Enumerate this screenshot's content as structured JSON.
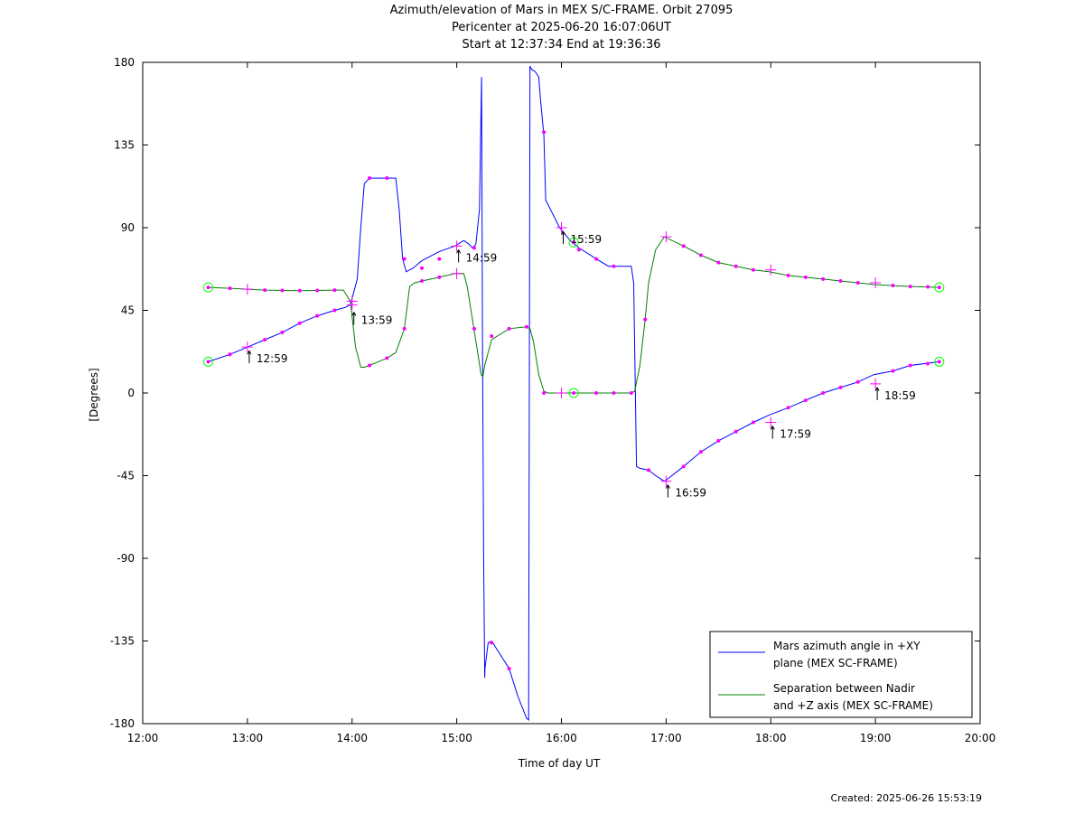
{
  "chart_data": {
    "type": "line",
    "title": [
      "Azimuth/elevation of Mars in MEX S/C-FRAME.  Orbit 27095",
      "Pericenter at 2025-06-20 16:07:06UT",
      "Start at 12:37:34 End at 19:36:36"
    ],
    "xlabel": "Time of day UT",
    "ylabel": "[Degrees]",
    "xlim": [
      12,
      20
    ],
    "ylim": [
      -180,
      180
    ],
    "x_ticks": [
      {
        "value": 12,
        "label": "12:00"
      },
      {
        "value": 13,
        "label": "13:00"
      },
      {
        "value": 14,
        "label": "14:00"
      },
      {
        "value": 15,
        "label": "15:00"
      },
      {
        "value": 16,
        "label": "16:00"
      },
      {
        "value": 17,
        "label": "17:00"
      },
      {
        "value": 18,
        "label": "18:00"
      },
      {
        "value": 19,
        "label": "19:00"
      },
      {
        "value": 20,
        "label": "20:00"
      }
    ],
    "y_ticks": [
      {
        "value": 180,
        "label": "180"
      },
      {
        "value": 135,
        "label": "135"
      },
      {
        "value": 90,
        "label": "90"
      },
      {
        "value": 45,
        "label": "45"
      },
      {
        "value": 0,
        "label": "0"
      },
      {
        "value": -45,
        "label": "-45"
      },
      {
        "value": -90,
        "label": "-90"
      },
      {
        "value": -135,
        "label": "-135"
      },
      {
        "value": -180,
        "label": "-180"
      }
    ],
    "grid": false,
    "legend_position": "bottom-right",
    "series": [
      {
        "name": "Mars azimuth angle in +XY plane (MEX SC-FRAME)",
        "legend_lines": [
          "Mars azimuth angle in +XY",
          "plane (MEX SC-FRAME)"
        ],
        "color": "#0000ff",
        "x": [
          12.626,
          12.833,
          13.0,
          13.167,
          13.333,
          13.5,
          13.667,
          13.833,
          13.933,
          13.983,
          14.05,
          14.083,
          14.117,
          14.167,
          14.25,
          14.333,
          14.417,
          14.45,
          14.483,
          14.517,
          14.583,
          14.667,
          14.833,
          14.983,
          15.067,
          15.117,
          15.15,
          15.183,
          15.217,
          15.237,
          15.247,
          15.257,
          15.267,
          15.27,
          15.3,
          15.333,
          15.5,
          15.583,
          15.667,
          15.687,
          15.7,
          15.717,
          15.75,
          15.783,
          15.8,
          15.833,
          15.85,
          15.983,
          16.083,
          16.167,
          16.333,
          16.45,
          16.5,
          16.55,
          16.667,
          16.69,
          16.717,
          16.75,
          16.833,
          16.9,
          16.983,
          17.033,
          17.167,
          17.333,
          17.5,
          17.667,
          17.833,
          17.983,
          18.167,
          18.333,
          18.5,
          18.667,
          18.833,
          18.983,
          19.167,
          19.333,
          19.61
        ],
        "y": [
          17,
          21,
          25,
          29,
          33,
          38,
          42,
          45,
          46.5,
          48,
          62,
          90,
          114,
          117,
          117,
          117,
          117,
          100,
          73,
          66,
          68,
          72,
          77,
          80,
          83,
          81,
          79,
          81,
          100,
          172,
          20,
          -90,
          -155,
          -150,
          -136,
          -135,
          -150,
          -165,
          -177,
          -178,
          178,
          176,
          175,
          172,
          160,
          140,
          105,
          90,
          83,
          79,
          73,
          69,
          69,
          69,
          69,
          60,
          -40,
          -41,
          -42,
          -45,
          -48,
          -46,
          -40,
          -32,
          -26,
          -21,
          -16,
          -12,
          -8,
          -4,
          0,
          3,
          6,
          10,
          12,
          15,
          17
        ]
      },
      {
        "name": "Separation between Nadir and +Z axis (MEX SC-FRAME)",
        "legend_lines": [
          "Separation between Nadir",
          "and +Z axis (MEX SC-FRAME)"
        ],
        "color": "#008000",
        "x": [
          12.626,
          12.833,
          13.0,
          13.167,
          13.333,
          13.5,
          13.667,
          13.833,
          13.917,
          13.983,
          14.033,
          14.083,
          14.117,
          14.167,
          14.25,
          14.333,
          14.417,
          14.5,
          14.55,
          14.6,
          14.667,
          14.833,
          14.983,
          15.067,
          15.1,
          15.15,
          15.2,
          15.233,
          15.25,
          15.267,
          15.333,
          15.5,
          15.667,
          15.7,
          15.733,
          15.783,
          15.833,
          15.867,
          15.983,
          16.117,
          16.333,
          16.5,
          16.667,
          16.7,
          16.75,
          16.8,
          16.833,
          16.9,
          16.983,
          17.167,
          17.333,
          17.5,
          17.667,
          17.833,
          17.983,
          18.167,
          18.333,
          18.5,
          18.667,
          18.833,
          18.983,
          19.167,
          19.333,
          19.61
        ],
        "y": [
          57.5,
          57,
          56.5,
          56,
          55.8,
          55.7,
          55.8,
          56,
          56,
          50,
          25,
          14,
          14,
          15,
          17,
          19,
          22,
          35,
          58,
          60,
          61,
          63,
          65,
          65,
          58,
          40,
          22,
          10,
          9,
          15,
          29,
          35,
          36,
          35,
          28,
          10,
          1,
          0,
          0,
          0,
          0,
          0,
          0,
          1,
          15,
          40,
          60,
          78,
          85,
          80,
          75,
          71,
          69,
          67,
          66,
          64,
          63,
          62,
          61,
          60,
          59,
          58.5,
          58,
          57.5
        ]
      }
    ],
    "time_labels": [
      {
        "x": 13.0,
        "y": 25,
        "label": "12:59"
      },
      {
        "x": 14.0,
        "y": 46,
        "label": "13:59"
      },
      {
        "x": 15.0,
        "y": 80,
        "label": "14:59"
      },
      {
        "x": 16.0,
        "y": 90,
        "label": "15:59"
      },
      {
        "x": 17.0,
        "y": -48,
        "label": "16:59"
      },
      {
        "x": 18.0,
        "y": -16,
        "label": "17:59"
      },
      {
        "x": 19.0,
        "y": 5,
        "label": "18:59"
      }
    ],
    "marker_color": "#ff00ff",
    "circle_color": "#00ff00",
    "circle_markers": [
      {
        "x": 12.626,
        "y": 17
      },
      {
        "x": 12.626,
        "y": 57.5
      },
      {
        "x": 19.61,
        "y": 17
      },
      {
        "x": 19.61,
        "y": 57.5
      },
      {
        "x": 16.117,
        "y": 0
      },
      {
        "x": 16.117,
        "y": 82
      }
    ],
    "cross_markers": [
      {
        "x": 13.0,
        "y": 25
      },
      {
        "x": 14.0,
        "y": 48
      },
      {
        "x": 15.0,
        "y": 80
      },
      {
        "x": 16.0,
        "y": 90
      },
      {
        "x": 17.0,
        "y": -48
      },
      {
        "x": 18.0,
        "y": -16
      },
      {
        "x": 19.0,
        "y": 5
      },
      {
        "x": 13.0,
        "y": 56.5
      },
      {
        "x": 14.0,
        "y": 50
      },
      {
        "x": 15.0,
        "y": 65
      },
      {
        "x": 16.0,
        "y": 0
      },
      {
        "x": 17.0,
        "y": 85
      },
      {
        "x": 18.0,
        "y": 67
      },
      {
        "x": 19.0,
        "y": 60
      }
    ],
    "dot_markers_az": [
      {
        "x": 12.833,
        "y": 21
      },
      {
        "x": 13.167,
        "y": 29
      },
      {
        "x": 13.333,
        "y": 33
      },
      {
        "x": 13.5,
        "y": 38
      },
      {
        "x": 13.667,
        "y": 42
      },
      {
        "x": 13.833,
        "y": 45
      },
      {
        "x": 14.167,
        "y": 117
      },
      {
        "x": 14.333,
        "y": 117
      },
      {
        "x": 14.5,
        "y": 73
      },
      {
        "x": 14.667,
        "y": 68
      },
      {
        "x": 14.833,
        "y": 73
      },
      {
        "x": 15.167,
        "y": 79
      },
      {
        "x": 15.333,
        "y": -136
      },
      {
        "x": 15.5,
        "y": -150
      },
      {
        "x": 15.833,
        "y": 142
      },
      {
        "x": 16.167,
        "y": 78
      },
      {
        "x": 16.333,
        "y": 73
      },
      {
        "x": 16.5,
        "y": 69
      },
      {
        "x": 16.833,
        "y": -42
      },
      {
        "x": 17.167,
        "y": -40
      },
      {
        "x": 17.333,
        "y": -32
      },
      {
        "x": 17.5,
        "y": -26
      },
      {
        "x": 17.667,
        "y": -21
      },
      {
        "x": 17.833,
        "y": -16
      },
      {
        "x": 18.167,
        "y": -8
      },
      {
        "x": 18.333,
        "y": -4
      },
      {
        "x": 18.5,
        "y": 0
      },
      {
        "x": 18.667,
        "y": 3
      },
      {
        "x": 18.833,
        "y": 6
      },
      {
        "x": 19.167,
        "y": 12
      },
      {
        "x": 19.333,
        "y": 15
      },
      {
        "x": 19.5,
        "y": 16
      }
    ],
    "dot_markers_sep": [
      {
        "x": 12.833,
        "y": 57
      },
      {
        "x": 13.167,
        "y": 56
      },
      {
        "x": 13.333,
        "y": 55.8
      },
      {
        "x": 13.5,
        "y": 55.7
      },
      {
        "x": 13.667,
        "y": 55.8
      },
      {
        "x": 13.833,
        "y": 56
      },
      {
        "x": 14.167,
        "y": 15
      },
      {
        "x": 14.333,
        "y": 19
      },
      {
        "x": 14.5,
        "y": 35
      },
      {
        "x": 14.667,
        "y": 61
      },
      {
        "x": 14.833,
        "y": 63
      },
      {
        "x": 15.167,
        "y": 35
      },
      {
        "x": 15.333,
        "y": 31
      },
      {
        "x": 15.5,
        "y": 35
      },
      {
        "x": 15.667,
        "y": 36
      },
      {
        "x": 15.833,
        "y": 0
      },
      {
        "x": 16.333,
        "y": 0
      },
      {
        "x": 16.5,
        "y": 0
      },
      {
        "x": 16.667,
        "y": 0
      },
      {
        "x": 16.8,
        "y": 40
      },
      {
        "x": 17.167,
        "y": 80
      },
      {
        "x": 17.333,
        "y": 75
      },
      {
        "x": 17.5,
        "y": 71
      },
      {
        "x": 17.667,
        "y": 69
      },
      {
        "x": 17.833,
        "y": 67
      },
      {
        "x": 18.167,
        "y": 64
      },
      {
        "x": 18.333,
        "y": 63
      },
      {
        "x": 18.5,
        "y": 62
      },
      {
        "x": 18.667,
        "y": 61
      },
      {
        "x": 18.833,
        "y": 60
      },
      {
        "x": 19.167,
        "y": 58.5
      },
      {
        "x": 19.333,
        "y": 58
      },
      {
        "x": 19.5,
        "y": 57.8
      }
    ]
  },
  "footer": {
    "created": "Created: 2025-06-26 15:53:19"
  }
}
